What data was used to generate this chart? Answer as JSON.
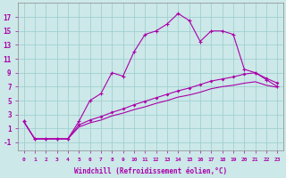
{
  "xlabel": "Windchill (Refroidissement éolien,°C)",
  "bg_color": "#cce8e8",
  "grid_color": "#99cccc",
  "line_color": "#aa00aa",
  "x_ticks": [
    0,
    1,
    2,
    3,
    4,
    5,
    6,
    7,
    8,
    9,
    10,
    11,
    12,
    13,
    14,
    15,
    16,
    17,
    18,
    19,
    20,
    21,
    22,
    23
  ],
  "y_ticks": [
    -1,
    1,
    3,
    5,
    7,
    9,
    11,
    13,
    15,
    17
  ],
  "ylim": [
    -2.2,
    19.0
  ],
  "xlim": [
    -0.5,
    23.5
  ],
  "line1_x": [
    0,
    1,
    2,
    3,
    4,
    5,
    6,
    7,
    8,
    9,
    10,
    11,
    12,
    13,
    14,
    15,
    16,
    17,
    18,
    19,
    20,
    21,
    22,
    23
  ],
  "line1_y": [
    2,
    -0.5,
    -0.5,
    -0.5,
    -0.5,
    2,
    5.0,
    6.0,
    9.0,
    8.5,
    12,
    14.5,
    15,
    16,
    17.5,
    16.5,
    13.5,
    15,
    15,
    14.5,
    9.5,
    9,
    8,
    7
  ],
  "line2_x": [
    0,
    1,
    2,
    3,
    4,
    5,
    6,
    7,
    8,
    9,
    10,
    11,
    12,
    13,
    14,
    15,
    16,
    17,
    18,
    19,
    20,
    21,
    22,
    23
  ],
  "line2_y": [
    2,
    -0.5,
    -0.5,
    -0.5,
    -0.5,
    1.2,
    1.8,
    2.2,
    2.8,
    3.2,
    3.7,
    4.1,
    4.6,
    5.0,
    5.5,
    5.8,
    6.2,
    6.7,
    7.0,
    7.2,
    7.5,
    7.7,
    7.2,
    6.9
  ],
  "line3_x": [
    0,
    1,
    2,
    3,
    4,
    5,
    6,
    7,
    8,
    9,
    10,
    11,
    12,
    13,
    14,
    15,
    16,
    17,
    18,
    19,
    20,
    21,
    22,
    23
  ],
  "line3_y": [
    2,
    -0.5,
    -0.5,
    -0.5,
    -0.5,
    1.5,
    2.2,
    2.7,
    3.3,
    3.8,
    4.4,
    4.9,
    5.4,
    5.9,
    6.4,
    6.8,
    7.3,
    7.8,
    8.1,
    8.4,
    8.8,
    9.0,
    8.2,
    7.5
  ]
}
